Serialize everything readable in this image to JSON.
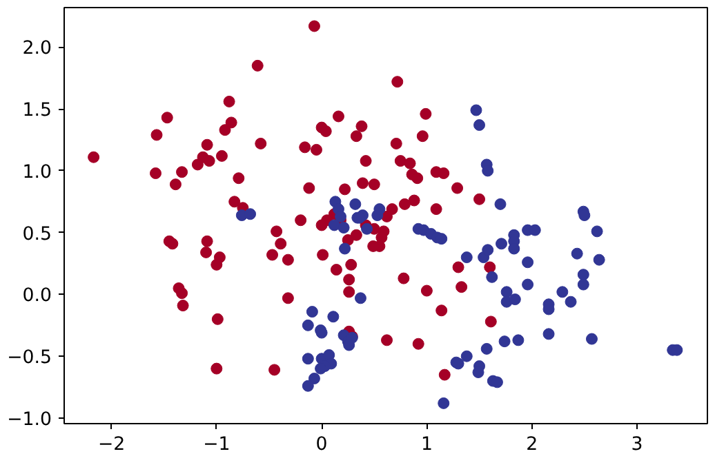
{
  "chart_data": {
    "type": "scatter",
    "marker": "circle",
    "grid": false,
    "xlim": [
      -2.45,
      3.67
    ],
    "ylim": [
      -1.045,
      2.32
    ],
    "xticks": [
      {
        "value": -2,
        "label": "−2"
      },
      {
        "value": -1,
        "label": "−1"
      },
      0,
      1,
      2,
      3
    ],
    "yticks": [
      {
        "value": -1.0,
        "label": "−1.0"
      },
      {
        "value": -0.5,
        "label": "−0.5"
      },
      {
        "value": 0.0,
        "label": "0.0"
      },
      {
        "value": 0.5,
        "label": "0.5"
      },
      {
        "value": 1.0,
        "label": "1.0"
      },
      {
        "value": 1.5,
        "label": "1.5"
      },
      {
        "value": 2.0,
        "label": "2.0"
      }
    ],
    "series": [
      {
        "color": "#a50026",
        "x": [
          -2.17,
          -0.61,
          -0.07,
          0.72,
          -0.88,
          -1.47,
          0.16,
          -0.86,
          -0.92,
          0.38,
          0.99,
          -0.58,
          -1.09,
          -0.16,
          -0.05,
          0.33,
          0.96,
          -1.57,
          0.71,
          -1.13,
          -1.18,
          -1.07,
          -0.95,
          0.0,
          0.04,
          0.42,
          0.75,
          0.84,
          0.86,
          0.91,
          1.09,
          1.16,
          -1.33,
          -1.58,
          -1.39,
          -0.79,
          0.39,
          0.5,
          -0.12,
          0.22,
          1.29,
          0.88,
          -0.83,
          0.67,
          0.79,
          -0.75,
          1.09,
          1.5,
          0.62,
          0.12,
          0.05,
          0.18,
          0.42,
          0.5,
          0.0,
          -0.2,
          0.33,
          0.25,
          0.59,
          0.57,
          0.55,
          0.49,
          -0.43,
          -0.39,
          -1.45,
          -1.42,
          -1.09,
          -1.1,
          -0.97,
          -1.0,
          -0.47,
          -0.32,
          0.01,
          0.14,
          0.28,
          0.78,
          0.26,
          -1.36,
          -1.33,
          -1.32,
          -0.32,
          -0.99,
          0.26,
          1.0,
          1.3,
          1.33,
          1.6,
          1.61,
          1.14,
          -1.0,
          -0.45,
          0.26,
          0.29,
          0.62,
          0.92,
          1.17
        ],
        "values": [
          1.11,
          1.85,
          2.17,
          1.72,
          1.56,
          1.43,
          1.44,
          1.39,
          1.33,
          1.36,
          1.46,
          1.22,
          1.21,
          1.19,
          1.17,
          1.28,
          1.28,
          1.29,
          1.22,
          1.11,
          1.05,
          1.08,
          1.12,
          1.35,
          1.32,
          1.08,
          1.08,
          1.06,
          0.97,
          0.94,
          0.99,
          0.98,
          0.99,
          0.98,
          0.89,
          0.94,
          0.9,
          0.89,
          0.86,
          0.85,
          0.86,
          0.76,
          0.75,
          0.69,
          0.73,
          0.7,
          0.69,
          0.77,
          0.63,
          0.65,
          0.6,
          0.6,
          0.56,
          0.53,
          0.56,
          0.6,
          0.48,
          0.44,
          0.51,
          0.46,
          0.39,
          0.39,
          0.51,
          0.41,
          0.43,
          0.41,
          0.43,
          0.34,
          0.3,
          0.24,
          0.32,
          0.28,
          0.32,
          0.2,
          0.24,
          0.13,
          0.12,
          0.05,
          0.01,
          -0.09,
          -0.03,
          -0.2,
          0.02,
          0.03,
          0.22,
          0.06,
          0.22,
          -0.22,
          -0.13,
          -0.6,
          -0.61,
          -0.3,
          -0.34,
          -0.37,
          -0.4,
          -0.65
        ]
      },
      {
        "color": "#313695",
        "x": [
          1.47,
          1.5,
          1.57,
          1.58,
          1.7,
          0.13,
          0.16,
          0.18,
          0.32,
          0.39,
          0.34,
          0.53,
          0.55,
          -0.76,
          -0.68,
          0.12,
          0.21,
          0.36,
          0.43,
          0.22,
          0.92,
          0.97,
          1.04,
          1.1,
          1.14,
          0.37,
          -0.09,
          -0.13,
          0.11,
          -0.01,
          0.0,
          0.21,
          0.25,
          0.29,
          0.26,
          -0.13,
          0.0,
          0.07,
          0.09,
          0.03,
          -0.01,
          -0.07,
          -0.13,
          1.38,
          1.54,
          1.58,
          1.62,
          1.71,
          1.83,
          1.83,
          1.83,
          1.96,
          2.03,
          1.96,
          1.96,
          1.76,
          1.76,
          1.84,
          2.16,
          2.16,
          2.16,
          1.87,
          1.74,
          1.57,
          1.38,
          1.28,
          1.3,
          1.5,
          1.49,
          1.63,
          1.67,
          1.16,
          2.49,
          2.5,
          2.62,
          2.43,
          2.64,
          2.49,
          2.49,
          2.29,
          2.37,
          2.57,
          3.34,
          3.38
        ],
        "values": [
          1.49,
          1.37,
          1.05,
          1.0,
          0.73,
          0.75,
          0.69,
          0.63,
          0.73,
          0.64,
          0.62,
          0.64,
          0.69,
          0.64,
          0.65,
          0.56,
          0.54,
          0.62,
          0.53,
          0.37,
          0.53,
          0.52,
          0.49,
          0.46,
          0.45,
          -0.03,
          -0.14,
          -0.25,
          -0.18,
          -0.29,
          -0.31,
          -0.33,
          -0.38,
          -0.35,
          -0.41,
          -0.52,
          -0.52,
          -0.49,
          -0.56,
          -0.58,
          -0.6,
          -0.68,
          -0.74,
          0.3,
          0.3,
          0.36,
          0.14,
          0.41,
          0.48,
          0.43,
          0.37,
          0.52,
          0.52,
          0.26,
          0.08,
          0.02,
          -0.06,
          -0.04,
          -0.08,
          -0.12,
          -0.32,
          -0.37,
          -0.38,
          -0.44,
          -0.5,
          -0.55,
          -0.56,
          -0.58,
          -0.63,
          -0.7,
          -0.71,
          -0.88,
          0.67,
          0.64,
          0.51,
          0.33,
          0.28,
          0.16,
          0.08,
          0.02,
          -0.06,
          -0.36,
          -0.45,
          -0.45
        ]
      }
    ]
  }
}
